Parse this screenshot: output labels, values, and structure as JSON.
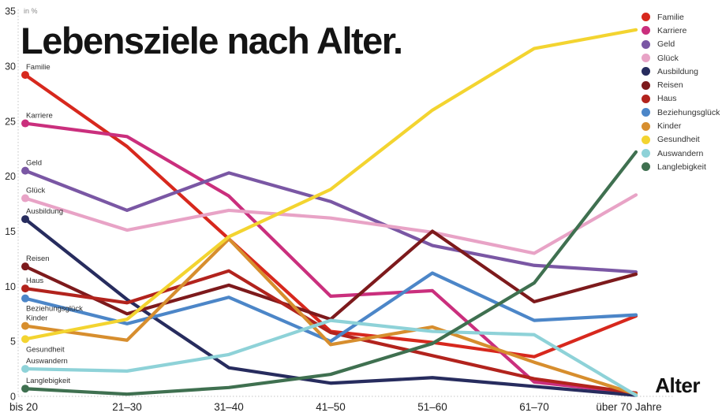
{
  "chart_data": {
    "type": "line",
    "title": "Lebensziele nach Alter.",
    "unit_label": "in %",
    "xlabel": "Alter",
    "categories": [
      "bis 20",
      "21–30",
      "31–40",
      "41–50",
      "51–60",
      "61–70",
      "über 70 Jahre"
    ],
    "ylim": [
      0,
      35
    ],
    "yticks": [
      0,
      5,
      10,
      15,
      20,
      25,
      30,
      35
    ],
    "grid": "dotted-axes-only",
    "legend_position": "top-right",
    "series": [
      {
        "name": "Familie",
        "color": "#d7281d",
        "values": [
          29.2,
          22.7,
          14.3,
          5.9,
          4.9,
          3.6,
          7.3
        ]
      },
      {
        "name": "Karriere",
        "color": "#ca2f7d",
        "values": [
          24.8,
          23.6,
          18.2,
          9.1,
          9.6,
          1.3,
          0.3
        ]
      },
      {
        "name": "Geld",
        "color": "#7a57a4",
        "values": [
          20.5,
          16.9,
          20.3,
          17.7,
          13.7,
          11.9,
          11.3
        ]
      },
      {
        "name": "Glück",
        "color": "#e8a3c6",
        "values": [
          18.0,
          15.1,
          16.9,
          16.2,
          14.9,
          13.0,
          18.3
        ]
      },
      {
        "name": "Ausbildung",
        "color": "#272c5e",
        "values": [
          16.1,
          8.8,
          2.6,
          1.2,
          1.7,
          0.9,
          0.1
        ]
      },
      {
        "name": "Reisen",
        "color": "#7d1a1c",
        "values": [
          11.8,
          7.5,
          10.1,
          7.0,
          15.0,
          8.6,
          11.1
        ]
      },
      {
        "name": "Haus",
        "color": "#b2231d",
        "values": [
          9.8,
          8.5,
          11.4,
          5.8,
          3.7,
          1.6,
          0.3
        ]
      },
      {
        "name": "Beziehungsglück",
        "color": "#4c86c8",
        "values": [
          8.9,
          6.6,
          9.0,
          5.0,
          11.2,
          6.9,
          7.4
        ]
      },
      {
        "name": "Kinder",
        "color": "#d78e2e",
        "values": [
          6.4,
          5.1,
          14.3,
          4.7,
          6.3,
          3.1,
          0.2
        ]
      },
      {
        "name": "Gesundheit",
        "color": "#f3d430",
        "values": [
          5.2,
          7.0,
          14.5,
          18.8,
          26.0,
          31.6,
          33.3
        ]
      },
      {
        "name": "Auswandern",
        "color": "#8ed2d8",
        "values": [
          2.5,
          2.3,
          3.8,
          6.9,
          5.9,
          5.6,
          0.1
        ]
      },
      {
        "name": "Langlebigkeit",
        "color": "#3f7050",
        "values": [
          0.7,
          0.2,
          0.8,
          2.0,
          4.8,
          10.3,
          22.2
        ]
      }
    ]
  }
}
